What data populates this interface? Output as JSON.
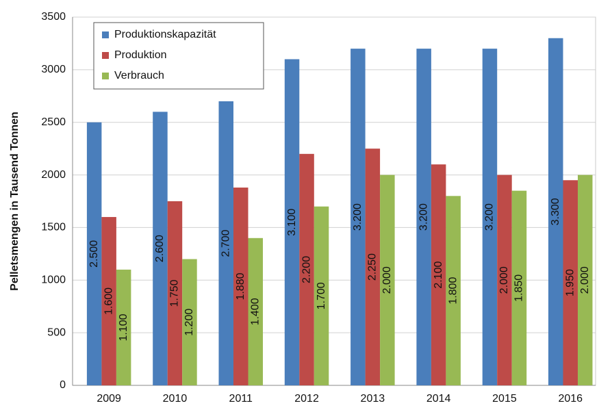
{
  "chart_data": {
    "type": "bar",
    "y_label": "Pelletsmengen in Tausend Tonnen",
    "categories": [
      "2009",
      "2010",
      "2011",
      "2012",
      "2013",
      "2014",
      "2015",
      "2016"
    ],
    "series": [
      {
        "name": "Produktionskapazität",
        "color": "#4a7ebb",
        "values": [
          2500,
          2600,
          2700,
          3100,
          3200,
          3200,
          3200,
          3300
        ],
        "value_labels": [
          "2.500",
          "2.600",
          "2.700",
          "3.100",
          "3.200",
          "3.200",
          "3.200",
          "3.300"
        ]
      },
      {
        "name": "Produktion",
        "color": "#be4b48",
        "values": [
          1600,
          1750,
          1880,
          2200,
          2250,
          2100,
          2000,
          1950
        ],
        "value_labels": [
          "1.600",
          "1.750",
          "1.880",
          "2.200",
          "2.250",
          "2.100",
          "2.000",
          "1.950"
        ]
      },
      {
        "name": "Verbrauch",
        "color": "#98b954",
        "values": [
          1100,
          1200,
          1400,
          1700,
          2000,
          1800,
          1850,
          2000
        ],
        "value_labels": [
          "1.100",
          "1.200",
          "1.400",
          "1.700",
          "2.000",
          "1.800",
          "1.850",
          "2.000"
        ]
      }
    ],
    "ylim": [
      0,
      3500
    ],
    "yticks": [
      0,
      500,
      1000,
      1500,
      2000,
      2500,
      3000,
      3500
    ],
    "grid": true,
    "legend": "upper left"
  }
}
